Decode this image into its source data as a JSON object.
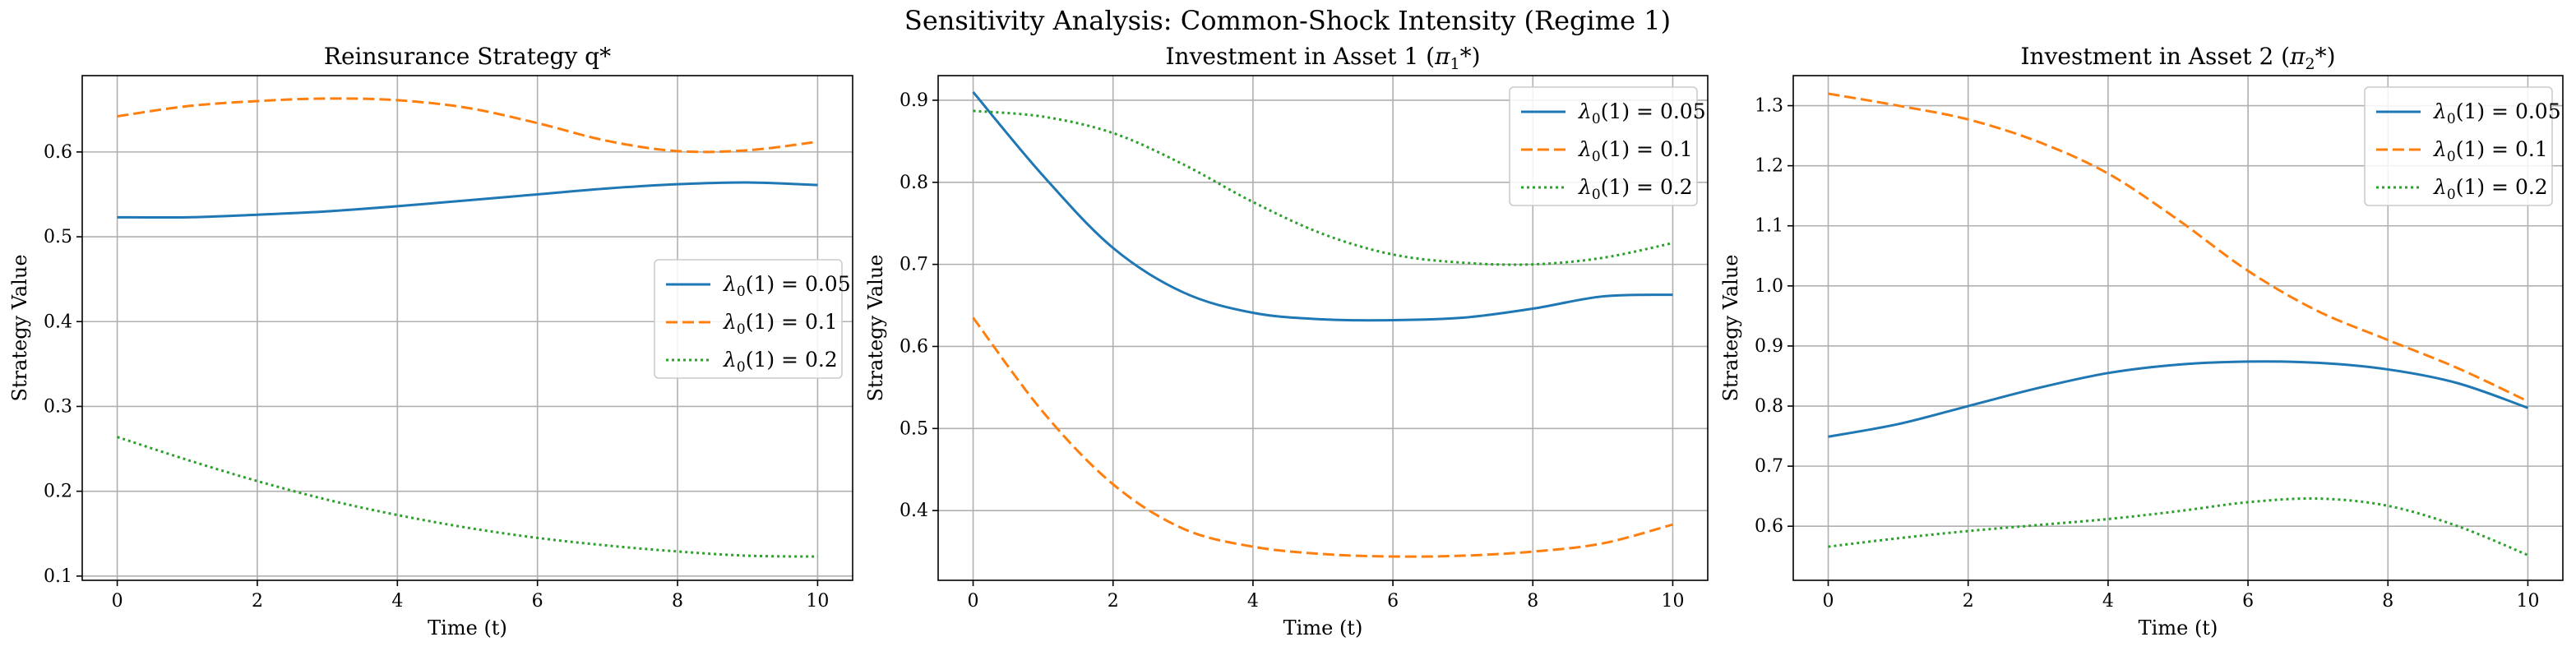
{
  "figure_title": "Sensitivity Analysis: Common-Shock Intensity (Regime 1)",
  "colors": {
    "blue": "#1f77b4",
    "orange": "#ff7f0e",
    "green": "#2ca02c"
  },
  "chart_data": [
    {
      "type": "line",
      "title": "Reinsurance Strategy q*",
      "xlabel": "Time (t)",
      "ylabel": "Strategy Value",
      "xlim": [
        -0.5,
        10.5
      ],
      "ylim": [
        0.095,
        0.69
      ],
      "xticks": [
        0,
        2,
        4,
        6,
        8,
        10
      ],
      "xtick_labels": [
        "0",
        "2",
        "4",
        "6",
        "8",
        "10"
      ],
      "yticks": [
        0.1,
        0.2,
        0.3,
        0.4,
        0.5,
        0.6
      ],
      "ytick_labels": [
        "0.1",
        "0.2",
        "0.3",
        "0.4",
        "0.5",
        "0.6"
      ],
      "grid": true,
      "legend_loc": "center-right",
      "x": [
        0,
        1,
        2,
        3,
        4,
        5,
        6,
        7,
        8,
        9,
        10
      ],
      "series": [
        {
          "name": "λ0(1) = 0.05",
          "label_main": "λ",
          "label_sub": "0",
          "label_rest": "(1) = 0.05",
          "style": "solid",
          "color": "#1f77b4",
          "values": [
            0.523,
            0.523,
            0.526,
            0.53,
            0.536,
            0.543,
            0.55,
            0.557,
            0.562,
            0.564,
            0.561
          ]
        },
        {
          "name": "λ0(1) = 0.1",
          "label_main": "λ",
          "label_sub": "0",
          "label_rest": "(1) = 0.1",
          "style": "dashed",
          "color": "#ff7f0e",
          "values": [
            0.642,
            0.654,
            0.66,
            0.663,
            0.661,
            0.652,
            0.634,
            0.613,
            0.601,
            0.602,
            0.612
          ]
        },
        {
          "name": "λ0(1) = 0.2",
          "label_main": "λ",
          "label_sub": "0",
          "label_rest": "(1) = 0.2",
          "style": "dotted",
          "color": "#2ca02c",
          "values": [
            0.264,
            0.237,
            0.212,
            0.19,
            0.172,
            0.157,
            0.145,
            0.136,
            0.129,
            0.124,
            0.123
          ]
        }
      ]
    },
    {
      "type": "line",
      "title_main": "Investment in Asset 1 (",
      "title_sym": "π",
      "title_sub": "1",
      "title_end": "*)",
      "xlabel": "Time (t)",
      "ylabel": "Strategy Value",
      "xlim": [
        -0.5,
        10.5
      ],
      "ylim": [
        0.315,
        0.93
      ],
      "xticks": [
        0,
        2,
        4,
        6,
        8,
        10
      ],
      "xtick_labels": [
        "0",
        "2",
        "4",
        "6",
        "8",
        "10"
      ],
      "yticks": [
        0.4,
        0.5,
        0.6,
        0.7,
        0.8,
        0.9
      ],
      "ytick_labels": [
        "0.4",
        "0.5",
        "0.6",
        "0.7",
        "0.8",
        "0.9"
      ],
      "grid": true,
      "legend_loc": "upper-right",
      "x": [
        0,
        1,
        2,
        3,
        4,
        5,
        6,
        7,
        8,
        9,
        10
      ],
      "series": [
        {
          "name": "λ0(1) = 0.05",
          "label_main": "λ",
          "label_sub": "0",
          "label_rest": "(1) = 0.05",
          "style": "solid",
          "color": "#1f77b4",
          "values": [
            0.91,
            0.808,
            0.72,
            0.666,
            0.641,
            0.633,
            0.632,
            0.635,
            0.646,
            0.661,
            0.663
          ]
        },
        {
          "name": "λ0(1) = 0.1",
          "label_main": "λ",
          "label_sub": "0",
          "label_rest": "(1) = 0.1",
          "style": "dashed",
          "color": "#ff7f0e",
          "values": [
            0.635,
            0.52,
            0.432,
            0.378,
            0.356,
            0.347,
            0.344,
            0.345,
            0.35,
            0.36,
            0.383
          ]
        },
        {
          "name": "λ0(1) = 0.2",
          "label_main": "λ",
          "label_sub": "0",
          "label_rest": "(1) = 0.2",
          "style": "dotted",
          "color": "#2ca02c",
          "values": [
            0.887,
            0.88,
            0.86,
            0.822,
            0.776,
            0.737,
            0.712,
            0.702,
            0.7,
            0.708,
            0.726
          ]
        }
      ]
    },
    {
      "type": "line",
      "title_main": "Investment in Asset 2 (",
      "title_sym": "π",
      "title_sub": "2",
      "title_end": "*)",
      "xlabel": "Time (t)",
      "ylabel": "Strategy Value",
      "xlim": [
        -0.5,
        10.5
      ],
      "ylim": [
        0.51,
        1.35
      ],
      "xticks": [
        0,
        2,
        4,
        6,
        8,
        10
      ],
      "xtick_labels": [
        "0",
        "2",
        "4",
        "6",
        "8",
        "10"
      ],
      "yticks": [
        0.6,
        0.7,
        0.8,
        0.9,
        1.0,
        1.1,
        1.2,
        1.3
      ],
      "ytick_labels": [
        "0.6",
        "0.7",
        "0.8",
        "0.9",
        "1.0",
        "1.1",
        "1.2",
        "1.3"
      ],
      "grid": true,
      "legend_loc": "upper-right",
      "x": [
        0,
        1,
        2,
        3,
        4,
        5,
        6,
        7,
        8,
        9,
        10
      ],
      "series": [
        {
          "name": "λ0(1) = 0.05",
          "label_main": "λ",
          "label_sub": "0",
          "label_rest": "(1) = 0.05",
          "style": "solid",
          "color": "#1f77b4",
          "values": [
            0.749,
            0.77,
            0.8,
            0.83,
            0.855,
            0.869,
            0.874,
            0.872,
            0.861,
            0.838,
            0.797
          ]
        },
        {
          "name": "λ0(1) = 0.1",
          "label_main": "λ",
          "label_sub": "0",
          "label_rest": "(1) = 0.1",
          "style": "dashed",
          "color": "#ff7f0e",
          "values": [
            1.32,
            1.3,
            1.277,
            1.24,
            1.187,
            1.11,
            1.025,
            0.958,
            0.91,
            0.863,
            0.808
          ]
        },
        {
          "name": "λ0(1) = 0.2",
          "label_main": "λ",
          "label_sub": "0",
          "label_rest": "(1) = 0.2",
          "style": "dotted",
          "color": "#2ca02c",
          "values": [
            0.566,
            0.58,
            0.592,
            0.602,
            0.612,
            0.625,
            0.64,
            0.646,
            0.634,
            0.6,
            0.552
          ]
        }
      ]
    }
  ]
}
